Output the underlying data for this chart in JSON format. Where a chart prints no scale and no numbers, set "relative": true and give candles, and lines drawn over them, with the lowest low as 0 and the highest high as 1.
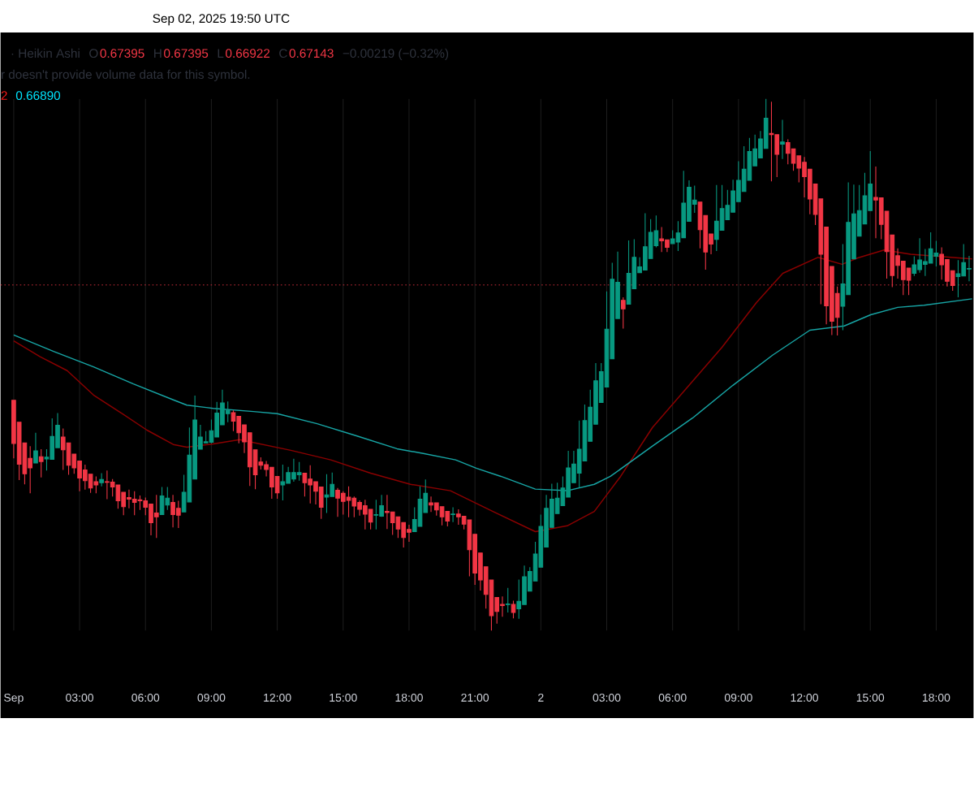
{
  "chart_data": {
    "type": "candlestick",
    "relative": true,
    "grid": "x",
    "tick_labels": "x",
    "annotations": [
      "Sep 02, 2025 19:50 UTC",
      "· Heikin Ashi",
      "O",
      "0.67395",
      "H",
      "0.67395",
      "L",
      "0.66922",
      "C",
      "0.67143",
      "−0.00219 (−0.32%)",
      "r doesn't provide volume data for this symbol.",
      "2",
      "0.66890"
    ],
    "xlim": [
      "2025-08-31T23:24",
      "2025-09-02T19:42"
    ],
    "xticks": [
      {
        "value": "2025-09-01T00:00",
        "label": "Sep"
      },
      {
        "value": "2025-09-01T03:00",
        "label": "03:00"
      },
      {
        "value": "2025-09-01T06:00",
        "label": "06:00"
      },
      {
        "value": "2025-09-01T09:00",
        "label": "09:00"
      },
      {
        "value": "2025-09-01T12:00",
        "label": "12:00"
      },
      {
        "value": "2025-09-01T15:00",
        "label": "15:00"
      },
      {
        "value": "2025-09-01T18:00",
        "label": "18:00"
      },
      {
        "value": "2025-09-01T21:00",
        "label": "21:00"
      },
      {
        "value": "2025-09-02T00:00",
        "label": "2"
      },
      {
        "value": "2025-09-02T03:00",
        "label": "03:00"
      },
      {
        "value": "2025-09-02T06:00",
        "label": "06:00"
      },
      {
        "value": "2025-09-02T09:00",
        "label": "09:00"
      },
      {
        "value": "2025-09-02T12:00",
        "label": "12:00"
      },
      {
        "value": "2025-09-02T15:00",
        "label": "15:00"
      },
      {
        "value": "2025-09-02T18:00",
        "label": "18:00"
      }
    ],
    "ref_lines": [
      {
        "axis": "y",
        "value": 0.65,
        "color": "#f23645",
        "line_style": "dotted"
      }
    ],
    "x": [
      "2025-09-01T00:00",
      "2025-09-01T00:15",
      "2025-09-01T00:30",
      "2025-09-01T00:45",
      "2025-09-01T01:00",
      "2025-09-01T01:15",
      "2025-09-01T01:30",
      "2025-09-01T01:45",
      "2025-09-01T02:00",
      "2025-09-01T02:15",
      "2025-09-01T02:30",
      "2025-09-01T02:45",
      "2025-09-01T03:00",
      "2025-09-01T03:15",
      "2025-09-01T03:30",
      "2025-09-01T03:45",
      "2025-09-01T04:00",
      "2025-09-01T04:15",
      "2025-09-01T04:30",
      "2025-09-01T04:45",
      "2025-09-01T05:00",
      "2025-09-01T05:15",
      "2025-09-01T05:30",
      "2025-09-01T05:45",
      "2025-09-01T06:00",
      "2025-09-01T06:15",
      "2025-09-01T06:30",
      "2025-09-01T06:45",
      "2025-09-01T07:00",
      "2025-09-01T07:15",
      "2025-09-01T07:30",
      "2025-09-01T07:45",
      "2025-09-01T08:00",
      "2025-09-01T08:15",
      "2025-09-01T08:30",
      "2025-09-01T08:45",
      "2025-09-01T09:00",
      "2025-09-01T09:15",
      "2025-09-01T09:30",
      "2025-09-01T09:45",
      "2025-09-01T10:00",
      "2025-09-01T10:15",
      "2025-09-01T10:30",
      "2025-09-01T10:45",
      "2025-09-01T11:00",
      "2025-09-01T11:15",
      "2025-09-01T11:30",
      "2025-09-01T11:45",
      "2025-09-01T12:00",
      "2025-09-01T12:15",
      "2025-09-01T12:30",
      "2025-09-01T12:45",
      "2025-09-01T13:00",
      "2025-09-01T13:15",
      "2025-09-01T13:30",
      "2025-09-01T13:45",
      "2025-09-01T14:00",
      "2025-09-01T14:15",
      "2025-09-01T14:30",
      "2025-09-01T14:45",
      "2025-09-01T15:00",
      "2025-09-01T15:15",
      "2025-09-01T15:30",
      "2025-09-01T15:45",
      "2025-09-01T16:00",
      "2025-09-01T16:15",
      "2025-09-01T16:30",
      "2025-09-01T16:45",
      "2025-09-01T17:00",
      "2025-09-01T17:15",
      "2025-09-01T17:30",
      "2025-09-01T17:45",
      "2025-09-01T18:00",
      "2025-09-01T18:15",
      "2025-09-01T18:30",
      "2025-09-01T18:45",
      "2025-09-01T19:00",
      "2025-09-01T19:15",
      "2025-09-01T19:30",
      "2025-09-01T19:45",
      "2025-09-01T20:00",
      "2025-09-01T20:15",
      "2025-09-01T20:30",
      "2025-09-01T20:45",
      "2025-09-01T21:00",
      "2025-09-01T21:15",
      "2025-09-01T21:30",
      "2025-09-01T21:45",
      "2025-09-01T22:00",
      "2025-09-01T22:15",
      "2025-09-01T22:30",
      "2025-09-01T22:45",
      "2025-09-01T23:00",
      "2025-09-01T23:15",
      "2025-09-01T23:30",
      "2025-09-01T23:45",
      "2025-09-02T00:00",
      "2025-09-02T00:15",
      "2025-09-02T00:30",
      "2025-09-02T00:45",
      "2025-09-02T01:00",
      "2025-09-02T01:15",
      "2025-09-02T01:30",
      "2025-09-02T01:45",
      "2025-09-02T02:00",
      "2025-09-02T02:15",
      "2025-09-02T02:30",
      "2025-09-02T02:45",
      "2025-09-02T03:00",
      "2025-09-02T03:15",
      "2025-09-02T03:30",
      "2025-09-02T03:45",
      "2025-09-02T04:00",
      "2025-09-02T04:15",
      "2025-09-02T04:30",
      "2025-09-02T04:45",
      "2025-09-02T05:00",
      "2025-09-02T05:15",
      "2025-09-02T05:30",
      "2025-09-02T05:45",
      "2025-09-02T06:00",
      "2025-09-02T06:15",
      "2025-09-02T06:30",
      "2025-09-02T06:45",
      "2025-09-02T07:00",
      "2025-09-02T07:15",
      "2025-09-02T07:30",
      "2025-09-02T07:45",
      "2025-09-02T08:00",
      "2025-09-02T08:15",
      "2025-09-02T08:30",
      "2025-09-02T08:45",
      "2025-09-02T09:00",
      "2025-09-02T09:15",
      "2025-09-02T09:30",
      "2025-09-02T09:45",
      "2025-09-02T10:00",
      "2025-09-02T10:15",
      "2025-09-02T10:30",
      "2025-09-02T10:45",
      "2025-09-02T11:00",
      "2025-09-02T11:15",
      "2025-09-02T11:30",
      "2025-09-02T11:45",
      "2025-09-02T12:00",
      "2025-09-02T12:15",
      "2025-09-02T12:30",
      "2025-09-02T12:45",
      "2025-09-02T13:00",
      "2025-09-02T13:15",
      "2025-09-02T13:30",
      "2025-09-02T13:45",
      "2025-09-02T14:00",
      "2025-09-02T14:15",
      "2025-09-02T14:30",
      "2025-09-02T14:45",
      "2025-09-02T15:00",
      "2025-09-02T15:15",
      "2025-09-02T15:30",
      "2025-09-02T15:45",
      "2025-09-02T16:00",
      "2025-09-02T16:15",
      "2025-09-02T16:30",
      "2025-09-02T16:45",
      "2025-09-02T17:00",
      "2025-09-02T17:15",
      "2025-09-02T17:30",
      "2025-09-02T17:45",
      "2025-09-02T18:00",
      "2025-09-02T18:15",
      "2025-09-02T18:30",
      "2025-09-02T18:45",
      "2025-09-02T19:00",
      "2025-09-02T19:15",
      "2025-09-02T19:30"
    ],
    "ohlc": [
      [
        0.433,
        0.433,
        0.324,
        0.352
      ],
      [
        0.392,
        0.392,
        0.283,
        0.313
      ],
      [
        0.353,
        0.353,
        0.275,
        0.295
      ],
      [
        0.324,
        0.347,
        0.258,
        0.306
      ],
      [
        0.315,
        0.372,
        0.315,
        0.338
      ],
      [
        0.327,
        0.341,
        0.288,
        0.318
      ],
      [
        0.323,
        0.341,
        0.301,
        0.326
      ],
      [
        0.322,
        0.399,
        0.322,
        0.365
      ],
      [
        0.344,
        0.409,
        0.344,
        0.386
      ],
      [
        0.364,
        0.38,
        0.302,
        0.34
      ],
      [
        0.353,
        0.353,
        0.293,
        0.311
      ],
      [
        0.332,
        0.332,
        0.295,
        0.306
      ],
      [
        0.319,
        0.319,
        0.262,
        0.287
      ],
      [
        0.302,
        0.312,
        0.265,
        0.282
      ],
      [
        0.294,
        0.294,
        0.259,
        0.268
      ],
      [
        0.28,
        0.29,
        0.258,
        0.274
      ],
      [
        0.278,
        0.296,
        0.271,
        0.284
      ],
      [
        0.28,
        0.301,
        0.247,
        0.279
      ],
      [
        0.279,
        0.285,
        0.252,
        0.27
      ],
      [
        0.274,
        0.274,
        0.229,
        0.244
      ],
      [
        0.26,
        0.26,
        0.217,
        0.233
      ],
      [
        0.25,
        0.265,
        0.23,
        0.247
      ],
      [
        0.247,
        0.262,
        0.217,
        0.241
      ],
      [
        0.246,
        0.254,
        0.227,
        0.244
      ],
      [
        0.244,
        0.25,
        0.217,
        0.232
      ],
      [
        0.238,
        0.238,
        0.179,
        0.203
      ],
      [
        0.221,
        0.255,
        0.174,
        0.214
      ],
      [
        0.218,
        0.27,
        0.218,
        0.253
      ],
      [
        0.236,
        0.27,
        0.227,
        0.249
      ],
      [
        0.241,
        0.255,
        0.194,
        0.218
      ],
      [
        0.23,
        0.244,
        0.193,
        0.217
      ],
      [
        0.223,
        0.293,
        0.223,
        0.26
      ],
      [
        0.242,
        0.382,
        0.242,
        0.33
      ],
      [
        0.285,
        0.442,
        0.285,
        0.396
      ],
      [
        0.341,
        0.387,
        0.341,
        0.364
      ],
      [
        0.353,
        0.375,
        0.352,
        0.355
      ],
      [
        0.354,
        0.397,
        0.352,
        0.376
      ],
      [
        0.364,
        0.43,
        0.364,
        0.409
      ],
      [
        0.387,
        0.453,
        0.387,
        0.428
      ],
      [
        0.408,
        0.431,
        0.392,
        0.414
      ],
      [
        0.41,
        0.414,
        0.375,
        0.394
      ],
      [
        0.403,
        0.403,
        0.352,
        0.372
      ],
      [
        0.387,
        0.387,
        0.334,
        0.355
      ],
      [
        0.372,
        0.372,
        0.272,
        0.308
      ],
      [
        0.34,
        0.34,
        0.266,
        0.293
      ],
      [
        0.317,
        0.326,
        0.303,
        0.311
      ],
      [
        0.312,
        0.319,
        0.29,
        0.303
      ],
      [
        0.307,
        0.307,
        0.248,
        0.27
      ],
      [
        0.29,
        0.29,
        0.248,
        0.259
      ],
      [
        0.274,
        0.312,
        0.245,
        0.28
      ],
      [
        0.277,
        0.308,
        0.277,
        0.297
      ],
      [
        0.285,
        0.323,
        0.28,
        0.297
      ],
      [
        0.293,
        0.317,
        0.282,
        0.297
      ],
      [
        0.296,
        0.296,
        0.252,
        0.278
      ],
      [
        0.285,
        0.311,
        0.239,
        0.274
      ],
      [
        0.28,
        0.28,
        0.237,
        0.262
      ],
      [
        0.27,
        0.27,
        0.21,
        0.232
      ],
      [
        0.251,
        0.294,
        0.221,
        0.255
      ],
      [
        0.252,
        0.297,
        0.252,
        0.275
      ],
      [
        0.264,
        0.268,
        0.214,
        0.249
      ],
      [
        0.258,
        0.262,
        0.218,
        0.243
      ],
      [
        0.251,
        0.271,
        0.213,
        0.245
      ],
      [
        0.249,
        0.252,
        0.213,
        0.234
      ],
      [
        0.241,
        0.245,
        0.216,
        0.228
      ],
      [
        0.235,
        0.246,
        0.19,
        0.219
      ],
      [
        0.228,
        0.228,
        0.19,
        0.204
      ],
      [
        0.217,
        0.246,
        0.19,
        0.218
      ],
      [
        0.215,
        0.255,
        0.214,
        0.235
      ],
      [
        0.224,
        0.255,
        0.191,
        0.222
      ],
      [
        0.223,
        0.223,
        0.18,
        0.203
      ],
      [
        0.214,
        0.214,
        0.174,
        0.191
      ],
      [
        0.203,
        0.203,
        0.156,
        0.175
      ],
      [
        0.19,
        0.199,
        0.167,
        0.185
      ],
      [
        0.186,
        0.232,
        0.186,
        0.209
      ],
      [
        0.196,
        0.271,
        0.196,
        0.247
      ],
      [
        0.222,
        0.284,
        0.222,
        0.258
      ],
      [
        0.24,
        0.252,
        0.223,
        0.236
      ],
      [
        0.24,
        0.24,
        0.216,
        0.227
      ],
      [
        0.233,
        0.233,
        0.198,
        0.214
      ],
      [
        0.224,
        0.224,
        0.196,
        0.206
      ],
      [
        0.218,
        0.232,
        0.204,
        0.219
      ],
      [
        0.219,
        0.228,
        0.199,
        0.214
      ],
      [
        0.215,
        0.215,
        0.19,
        0.2
      ],
      [
        0.208,
        0.208,
        0.102,
        0.152
      ],
      [
        0.181,
        0.181,
        0.086,
        0.108
      ],
      [
        0.146,
        0.146,
        0.075,
        0.095
      ],
      [
        0.12,
        0.12,
        0.041,
        0.068
      ],
      [
        0.095,
        0.095,
        0.0,
        0.028
      ],
      [
        0.062,
        0.062,
        0.013,
        0.036
      ],
      [
        0.049,
        0.064,
        0.026,
        0.047
      ],
      [
        0.049,
        0.08,
        0.034,
        0.05
      ],
      [
        0.049,
        0.056,
        0.023,
        0.034
      ],
      [
        0.041,
        0.096,
        0.022,
        0.055
      ],
      [
        0.049,
        0.122,
        0.049,
        0.101
      ],
      [
        0.074,
        0.119,
        0.074,
        0.111
      ],
      [
        0.093,
        0.167,
        0.093,
        0.144
      ],
      [
        0.119,
        0.218,
        0.119,
        0.196
      ],
      [
        0.157,
        0.255,
        0.157,
        0.23
      ],
      [
        0.194,
        0.276,
        0.194,
        0.247
      ],
      [
        0.22,
        0.278,
        0.22,
        0.249
      ],
      [
        0.235,
        0.29,
        0.235,
        0.268
      ],
      [
        0.251,
        0.338,
        0.251,
        0.306
      ],
      [
        0.278,
        0.338,
        0.278,
        0.313
      ],
      [
        0.296,
        0.395,
        0.269,
        0.341
      ],
      [
        0.319,
        0.425,
        0.319,
        0.395
      ],
      [
        0.356,
        0.453,
        0.356,
        0.42
      ],
      [
        0.388,
        0.503,
        0.388,
        0.47
      ],
      [
        0.429,
        0.503,
        0.429,
        0.487
      ],
      [
        0.458,
        0.638,
        0.458,
        0.567
      ],
      [
        0.511,
        0.692,
        0.511,
        0.661
      ],
      [
        0.587,
        0.713,
        0.587,
        0.655
      ],
      [
        0.621,
        0.627,
        0.568,
        0.605
      ],
      [
        0.614,
        0.734,
        0.614,
        0.672
      ],
      [
        0.643,
        0.736,
        0.643,
        0.702
      ],
      [
        0.673,
        0.702,
        0.673,
        0.684
      ],
      [
        0.678,
        0.785,
        0.678,
        0.722
      ],
      [
        0.7,
        0.774,
        0.7,
        0.749
      ],
      [
        0.724,
        0.781,
        0.721,
        0.752
      ],
      [
        0.737,
        0.759,
        0.712,
        0.733
      ],
      [
        0.735,
        0.735,
        0.712,
        0.721
      ],
      [
        0.728,
        0.753,
        0.728,
        0.737
      ],
      [
        0.731,
        0.77,
        0.714,
        0.748
      ],
      [
        0.739,
        0.865,
        0.739,
        0.804
      ],
      [
        0.77,
        0.847,
        0.77,
        0.834
      ],
      [
        0.802,
        0.837,
        0.786,
        0.81
      ],
      [
        0.806,
        0.806,
        0.719,
        0.754
      ],
      [
        0.781,
        0.781,
        0.679,
        0.712
      ],
      [
        0.746,
        0.746,
        0.708,
        0.727
      ],
      [
        0.736,
        0.838,
        0.714,
        0.77
      ],
      [
        0.753,
        0.838,
        0.753,
        0.794
      ],
      [
        0.773,
        0.829,
        0.773,
        0.8
      ],
      [
        0.787,
        0.848,
        0.787,
        0.827
      ],
      [
        0.807,
        0.883,
        0.807,
        0.847
      ],
      [
        0.826,
        0.911,
        0.826,
        0.868
      ],
      [
        0.847,
        0.927,
        0.847,
        0.901
      ],
      [
        0.874,
        0.933,
        0.874,
        0.906
      ],
      [
        0.889,
        0.94,
        0.889,
        0.925
      ],
      [
        0.907,
        1.0,
        0.907,
        0.964
      ],
      [
        0.935,
        0.995,
        0.845,
        0.933
      ],
      [
        0.933,
        0.933,
        0.853,
        0.896
      ],
      [
        0.915,
        0.961,
        0.887,
        0.919
      ],
      [
        0.918,
        0.924,
        0.877,
        0.898
      ],
      [
        0.906,
        0.906,
        0.865,
        0.879
      ],
      [
        0.893,
        0.893,
        0.843,
        0.87
      ],
      [
        0.881,
        0.891,
        0.815,
        0.854
      ],
      [
        0.868,
        0.868,
        0.783,
        0.812
      ],
      [
        0.84,
        0.84,
        0.763,
        0.783
      ],
      [
        0.812,
        0.812,
        0.614,
        0.708
      ],
      [
        0.759,
        0.759,
        0.576,
        0.611
      ],
      [
        0.685,
        0.685,
        0.556,
        0.582
      ],
      [
        0.634,
        0.647,
        0.555,
        0.589
      ],
      [
        0.61,
        0.727,
        0.565,
        0.652
      ],
      [
        0.632,
        0.843,
        0.632,
        0.768
      ],
      [
        0.699,
        0.839,
        0.699,
        0.784
      ],
      [
        0.742,
        0.838,
        0.742,
        0.79
      ],
      [
        0.765,
        0.861,
        0.765,
        0.818
      ],
      [
        0.79,
        0.902,
        0.79,
        0.84
      ],
      [
        0.815,
        0.873,
        0.738,
        0.81
      ],
      [
        0.814,
        0.814,
        0.736,
        0.764
      ],
      [
        0.789,
        0.789,
        0.662,
        0.713
      ],
      [
        0.744,
        0.744,
        0.646,
        0.668
      ],
      [
        0.705,
        0.719,
        0.662,
        0.687
      ],
      [
        0.695,
        0.695,
        0.631,
        0.66
      ],
      [
        0.682,
        0.682,
        0.631,
        0.659
      ],
      [
        0.672,
        0.704,
        0.667,
        0.688
      ],
      [
        0.679,
        0.738,
        0.673,
        0.697
      ],
      [
        0.689,
        0.718,
        0.667,
        0.694
      ],
      [
        0.691,
        0.749,
        0.691,
        0.718
      ],
      [
        0.704,
        0.733,
        0.685,
        0.71
      ],
      [
        0.708,
        0.721,
        0.66,
        0.688
      ],
      [
        0.698,
        0.698,
        0.647,
        0.657
      ],
      [
        0.677,
        0.677,
        0.639,
        0.649
      ],
      [
        0.666,
        0.697,
        0.627,
        0.671
      ],
      [
        0.667,
        0.727,
        0.667,
        0.692
      ],
      [
        0.68,
        0.705,
        0.657,
        0.681
      ]
    ],
    "series": [
      {
        "type": "line",
        "color": "#8b0000",
        "x": [
          "2025-09-01T00:00",
          "2025-09-01T01:12",
          "2025-09-01T02:26",
          "2025-09-01T03:38",
          "2025-09-01T04:50",
          "2025-09-01T06:04",
          "2025-09-01T07:16",
          "2025-09-01T07:53",
          "2025-09-01T09:05",
          "2025-09-01T10:17",
          "2025-09-01T12:37",
          "2025-09-01T14:26",
          "2025-09-01T16:15",
          "2025-09-01T18:04",
          "2025-09-01T19:53",
          "2025-09-01T21:49",
          "2025-09-01T23:45",
          "2025-09-02T01:12",
          "2025-09-02T02:26",
          "2025-09-02T03:38",
          "2025-09-02T05:05",
          "2025-09-02T08:15",
          "2025-09-02T09:49",
          "2025-09-02T11:01",
          "2025-09-02T12:37",
          "2025-09-02T13:43",
          "2025-09-02T14:26",
          "2025-09-02T15:38",
          "2025-09-02T16:50",
          "2025-09-02T19:38"
        ],
        "values": [
          0.545,
          0.515,
          0.489,
          0.443,
          0.411,
          0.377,
          0.35,
          0.345,
          0.351,
          0.359,
          0.339,
          0.321,
          0.296,
          0.275,
          0.263,
          0.224,
          0.186,
          0.197,
          0.224,
          0.29,
          0.382,
          0.533,
          0.617,
          0.672,
          0.702,
          0.689,
          0.701,
          0.716,
          0.708,
          0.699
        ]
      },
      {
        "type": "line",
        "color": "#17a5a5",
        "x": [
          "2025-09-01T00:00",
          "2025-09-01T01:49",
          "2025-09-01T03:38",
          "2025-09-01T05:27",
          "2025-09-01T07:16",
          "2025-09-01T07:53",
          "2025-09-01T09:05",
          "2025-09-01T10:55",
          "2025-09-01T12:00",
          "2025-09-01T13:49",
          "2025-09-01T15:38",
          "2025-09-01T17:27",
          "2025-09-01T18:39",
          "2025-09-01T20:07",
          "2025-09-01T21:05",
          "2025-09-01T22:11",
          "2025-09-01T23:45",
          "2025-09-02T01:12",
          "2025-09-02T02:26",
          "2025-09-02T03:10",
          "2025-09-02T05:05",
          "2025-09-02T06:55",
          "2025-09-02T08:44",
          "2025-09-02T10:33",
          "2025-09-02T12:15",
          "2025-09-02T13:49",
          "2025-09-02T15:01",
          "2025-09-02T16:15",
          "2025-09-02T17:27",
          "2025-09-02T19:38"
        ],
        "values": [
          0.556,
          0.525,
          0.496,
          0.464,
          0.434,
          0.424,
          0.418,
          0.412,
          0.408,
          0.389,
          0.366,
          0.342,
          0.333,
          0.321,
          0.305,
          0.29,
          0.266,
          0.263,
          0.275,
          0.29,
          0.347,
          0.4,
          0.461,
          0.518,
          0.565,
          0.573,
          0.594,
          0.608,
          0.612,
          0.624
        ]
      }
    ]
  }
}
